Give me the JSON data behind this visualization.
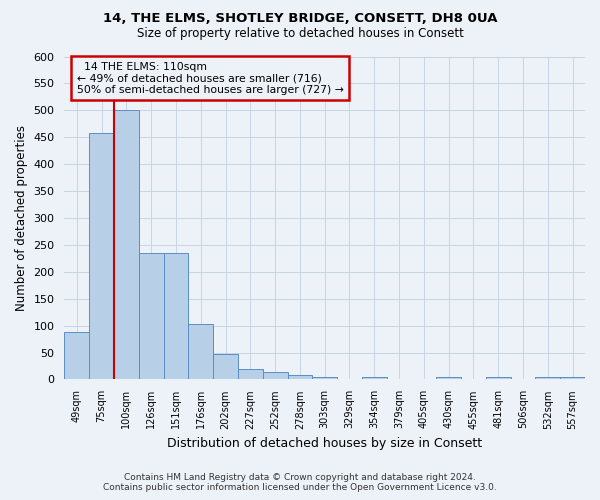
{
  "title1": "14, THE ELMS, SHOTLEY BRIDGE, CONSETT, DH8 0UA",
  "title2": "Size of property relative to detached houses in Consett",
  "xlabel": "Distribution of detached houses by size in Consett",
  "ylabel": "Number of detached properties",
  "categories": [
    "49sqm",
    "75sqm",
    "100sqm",
    "126sqm",
    "151sqm",
    "176sqm",
    "202sqm",
    "227sqm",
    "252sqm",
    "278sqm",
    "303sqm",
    "329sqm",
    "354sqm",
    "379sqm",
    "405sqm",
    "430sqm",
    "455sqm",
    "481sqm",
    "506sqm",
    "532sqm",
    "557sqm"
  ],
  "values": [
    88,
    457,
    500,
    235,
    235,
    103,
    47,
    20,
    13,
    9,
    5,
    0,
    5,
    0,
    0,
    4,
    0,
    4,
    0,
    4,
    4
  ],
  "bar_color": "#b8cfe8",
  "bar_edge_color": "#5a8fc4",
  "marker_label": "14 THE ELMS: 110sqm",
  "pct_smaller": "49% of detached houses are smaller (716)",
  "pct_larger": "50% of semi-detached houses are larger (727)",
  "annotation_box_color": "#cc0000",
  "vline_color": "#cc0000",
  "bg_color": "#edf2f9",
  "footer1": "Contains HM Land Registry data © Crown copyright and database right 2024.",
  "footer2": "Contains public sector information licensed under the Open Government Licence v3.0.",
  "ylim": [
    0,
    600
  ],
  "yticks": [
    0,
    50,
    100,
    150,
    200,
    250,
    300,
    350,
    400,
    450,
    500,
    550,
    600
  ]
}
